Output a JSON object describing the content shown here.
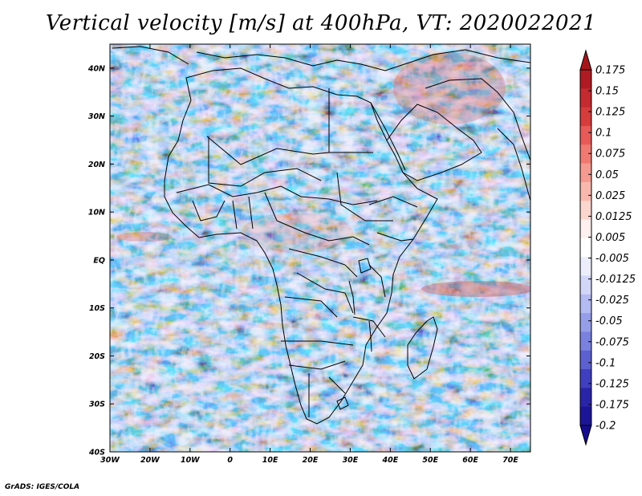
{
  "title": "Vertical velocity [m/s] at 400hPa, VT: 2020022021",
  "credit": "GrADS: IGES/COLA",
  "map": {
    "lat_labels": [
      "40N",
      "30N",
      "20N",
      "10N",
      "EQ",
      "10S",
      "20S",
      "30S",
      "40S"
    ],
    "lat_values": [
      40,
      30,
      20,
      10,
      0,
      -10,
      -20,
      -30,
      -40
    ],
    "lon_labels": [
      "30W",
      "20W",
      "10W",
      "0",
      "10E",
      "20E",
      "30E",
      "40E",
      "50E",
      "60E",
      "70E"
    ],
    "lon_values": [
      -30,
      -20,
      -10,
      0,
      10,
      20,
      30,
      40,
      50,
      60,
      70
    ],
    "lon_range": [
      -30,
      75
    ],
    "lat_range": [
      -40,
      45
    ]
  },
  "colorbar": {
    "labels": [
      "0.175",
      "0.15",
      "0.125",
      "0.1",
      "0.075",
      "0.05",
      "0.025",
      "0.0125",
      "0.005",
      "-0.005",
      "-0.0125",
      "-0.025",
      "-0.05",
      "-0.075",
      "-0.1",
      "-0.125",
      "-0.175",
      "-0.2"
    ],
    "colors": [
      "#b01a22",
      "#c42a2f",
      "#d63c3c",
      "#e85a58",
      "#f07a72",
      "#f59a90",
      "#f8b8ae",
      "#fbd6cf",
      "#fdf0ee",
      "#ffffff",
      "#eceefc",
      "#d2d6f7",
      "#b4bbf2",
      "#969ee9",
      "#7a81df",
      "#5c60d0",
      "#3f3fbf",
      "#2a24a8",
      "#1b1496"
    ],
    "max_color": "#a4161c",
    "min_color": "#140c8c"
  },
  "colors": {
    "ocean_base": "#ecd9f2",
    "border": "#000000"
  }
}
